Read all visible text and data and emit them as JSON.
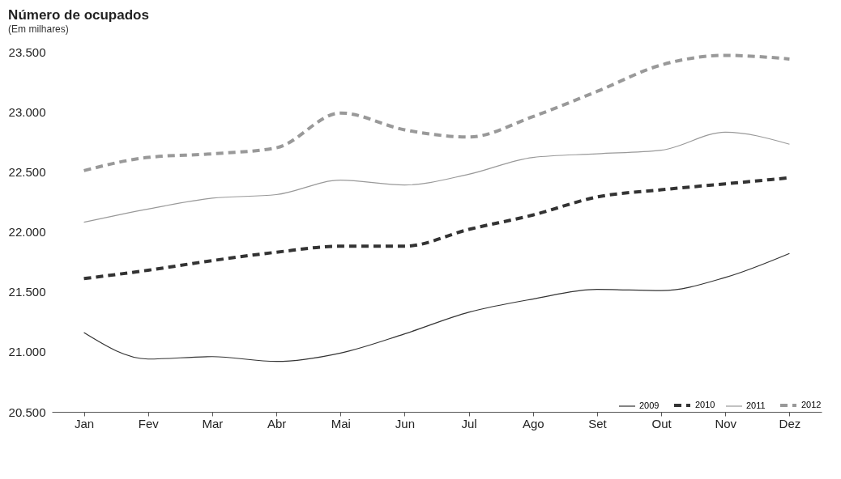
{
  "chart_data": {
    "type": "line",
    "title": "Número de ocupados",
    "subtitle": "(Em milhares)",
    "categories": [
      "Jan",
      "Fev",
      "Mar",
      "Abr",
      "Mai",
      "Jun",
      "Jul",
      "Ago",
      "Set",
      "Out",
      "Nov",
      "Dez"
    ],
    "series": [
      {
        "name": "2009",
        "color": "#333333",
        "line_style": "solid",
        "values": [
          21160,
          20940,
          20960,
          20920,
          20990,
          21150,
          21330,
          21440,
          21520,
          21510,
          21620,
          21820
        ]
      },
      {
        "name": "2010",
        "color": "#333333",
        "line_style": "dashed",
        "values": [
          21610,
          21680,
          21760,
          21830,
          21880,
          21880,
          22020,
          22140,
          22290,
          22350,
          22400,
          22450
        ]
      },
      {
        "name": "2011",
        "color": "#999999",
        "line_style": "solid",
        "values": [
          22080,
          22190,
          22280,
          22310,
          22430,
          22390,
          22480,
          22620,
          22650,
          22680,
          22830,
          22730
        ]
      },
      {
        "name": "2012",
        "color": "#999999",
        "line_style": "dashed",
        "values": [
          22510,
          22620,
          22650,
          22700,
          22990,
          22850,
          22790,
          22960,
          23170,
          23390,
          23470,
          23440
        ]
      }
    ],
    "ylim": [
      20500,
      23500
    ],
    "yticks": [
      {
        "value": 20500,
        "label": "20.500"
      },
      {
        "value": 21000,
        "label": "21.000"
      },
      {
        "value": 21500,
        "label": "21.500"
      },
      {
        "value": 22000,
        "label": "22.000"
      },
      {
        "value": 22500,
        "label": "22.500"
      },
      {
        "value": 23000,
        "label": "23.000"
      },
      {
        "value": 23500,
        "label": "23.500"
      }
    ],
    "grid": false,
    "legend": "bottom right",
    "marker": "none"
  }
}
